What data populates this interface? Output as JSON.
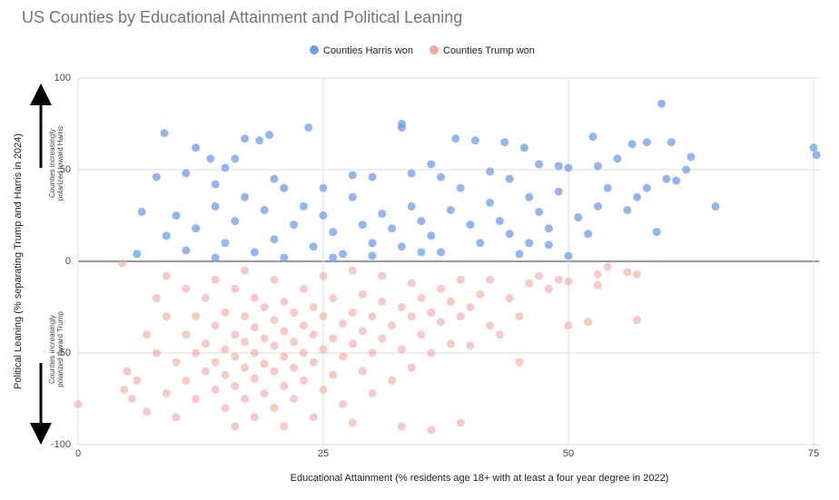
{
  "chart_data": {
    "type": "scatter",
    "title": "US Counties by Educational Attainment and Political Leaning",
    "x_label": "Educational Attainment (% residents age 18+ with at least a four year degree in 2022)",
    "y_label": "Political Leaning (% separating Trump and Harris in 2024)",
    "annotations": [
      [
        "Counties increasingly",
        "polarized toward Harris"
      ],
      [
        "Counties increasingly",
        "polarized toward Trump"
      ]
    ],
    "xlim": [
      0,
      75.6
    ],
    "ylim": [
      -100,
      100
    ],
    "xticks": [
      0,
      25,
      50,
      75
    ],
    "yticks": [
      100,
      50,
      0,
      -50,
      -100
    ],
    "grid": true,
    "legend": "top",
    "series": [
      {
        "name": "Counties Harris won",
        "color": "#6d9eeb",
        "x": [
          8.8,
          17,
          18.5,
          19.5,
          23.5,
          33,
          33,
          59.5,
          75,
          75.3,
          12,
          38.5,
          40.5,
          43.5,
          45.5,
          52.5,
          56.5,
          58,
          60.5,
          62.5,
          13.5,
          15,
          16,
          11,
          8,
          14,
          20,
          21,
          25,
          28,
          30,
          34,
          36,
          37,
          42,
          44,
          47,
          49,
          50,
          53,
          55,
          57,
          61,
          62,
          65,
          6.5,
          6,
          9,
          10,
          11,
          12,
          14,
          15,
          16,
          17,
          18,
          19,
          20,
          22,
          23,
          24,
          25,
          26,
          27,
          28,
          29,
          30,
          31,
          32,
          33,
          34,
          35,
          36,
          37,
          38,
          39,
          40,
          41,
          42,
          43,
          44,
          45,
          46,
          47,
          48,
          49,
          50,
          51,
          52,
          53,
          54,
          56,
          58,
          59,
          60,
          46,
          48,
          35,
          30,
          26,
          21,
          14
        ],
        "values": [
          70,
          67,
          66,
          69,
          73,
          75,
          73,
          86,
          62,
          58,
          62,
          67,
          66,
          65,
          62,
          68,
          64,
          65,
          65,
          57,
          56,
          51,
          56,
          48,
          46,
          42,
          45,
          40,
          40,
          47,
          46,
          48,
          53,
          46,
          49,
          45,
          53,
          52,
          51,
          52,
          56,
          35,
          44,
          50,
          30,
          27,
          4,
          14,
          25,
          6,
          18,
          30,
          10,
          22,
          35,
          5,
          28,
          12,
          20,
          30,
          8,
          25,
          16,
          4,
          35,
          20,
          10,
          26,
          18,
          8,
          30,
          22,
          14,
          5,
          28,
          40,
          20,
          10,
          32,
          22,
          15,
          4,
          35,
          27,
          18,
          38,
          3,
          24,
          15,
          30,
          40,
          28,
          40,
          16,
          45,
          10,
          9,
          5,
          3,
          2,
          2,
          2
        ]
      },
      {
        "name": "Counties Trump won",
        "color": "#f4a79f",
        "x": [
          4.5,
          0,
          5,
          6,
          7,
          7,
          8,
          8,
          9,
          9,
          10,
          10,
          11,
          11,
          11,
          12,
          12,
          12,
          13,
          13,
          13,
          14,
          14,
          14,
          14,
          15,
          15,
          15,
          15,
          16,
          16,
          16,
          16,
          16,
          17,
          17,
          17,
          17,
          17,
          18,
          18,
          18,
          18,
          18,
          19,
          19,
          19,
          19,
          20,
          20,
          20,
          20,
          20,
          21,
          21,
          21,
          21,
          21,
          22,
          22,
          22,
          22,
          23,
          23,
          23,
          23,
          24,
          24,
          24,
          24,
          25,
          25,
          25,
          25,
          26,
          26,
          26,
          27,
          27,
          27,
          28,
          28,
          28,
          28,
          29,
          29,
          29,
          30,
          30,
          30,
          31,
          31,
          31,
          32,
          32,
          33,
          33,
          33,
          34,
          34,
          34,
          35,
          35,
          36,
          36,
          36,
          37,
          37,
          38,
          38,
          39,
          39,
          39,
          40,
          40,
          41,
          42,
          42,
          43,
          44,
          45,
          45,
          46,
          47,
          48,
          49,
          50,
          50,
          52,
          53,
          53,
          54,
          57,
          57,
          56,
          5.5,
          9,
          4.7
        ],
        "values": [
          -1,
          -78,
          -60,
          -65,
          -82,
          -40,
          -50,
          -20,
          -72,
          -30,
          -85,
          -55,
          -40,
          -65,
          -15,
          -75,
          -50,
          -30,
          -60,
          -45,
          -20,
          -70,
          -55,
          -35,
          -10,
          -80,
          -62,
          -48,
          -28,
          -90,
          -68,
          -52,
          -40,
          -15,
          -75,
          -58,
          -44,
          -30,
          -5,
          -85,
          -64,
          -50,
          -36,
          -20,
          -72,
          -56,
          -42,
          -25,
          -80,
          -60,
          -46,
          -32,
          -10,
          -90,
          -68,
          -52,
          -38,
          -22,
          -75,
          -58,
          -44,
          -28,
          -65,
          -50,
          -35,
          -15,
          -85,
          -55,
          -40,
          -25,
          -70,
          -48,
          -30,
          -8,
          -62,
          -42,
          -20,
          -78,
          -52,
          -34,
          -88,
          -45,
          -28,
          -5,
          -60,
          -38,
          -18,
          -72,
          -50,
          -30,
          -42,
          -22,
          -8,
          -65,
          -35,
          -90,
          -48,
          -25,
          -58,
          -30,
          -12,
          -40,
          -20,
          -92,
          -50,
          -28,
          -33,
          -15,
          -45,
          -22,
          -88,
          -30,
          -10,
          -46,
          -25,
          -18,
          -35,
          -10,
          -40,
          -20,
          -55,
          -30,
          -12,
          -8,
          -15,
          -10,
          -35,
          -11,
          -33,
          -7,
          -13,
          -3,
          -7,
          -32,
          -6,
          -75,
          -8,
          -70
        ]
      }
    ]
  }
}
